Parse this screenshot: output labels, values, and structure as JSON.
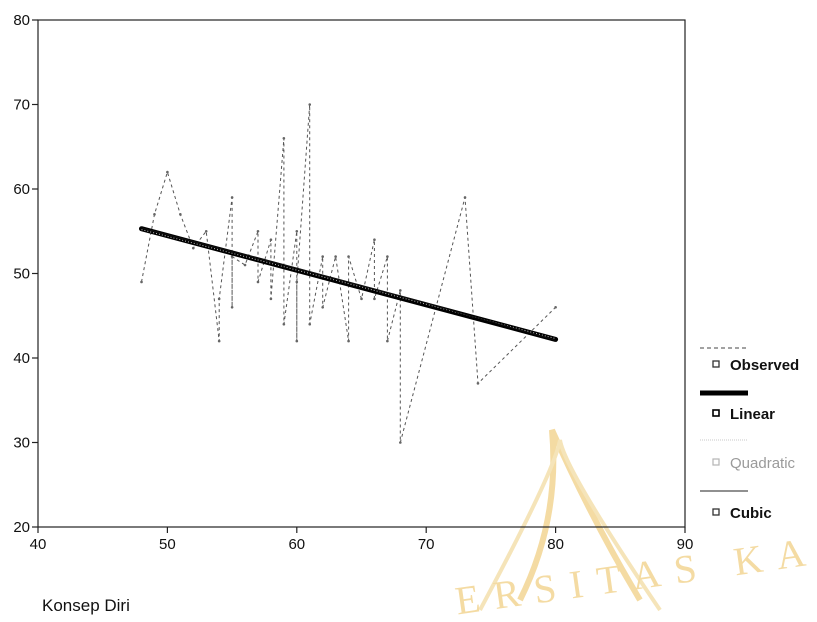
{
  "chart_data": {
    "type": "line",
    "xlabel": "Konsep Diri",
    "ylabel": "",
    "title": "",
    "xlim": [
      40,
      90
    ],
    "ylim": [
      20,
      80
    ],
    "xticks": [
      40,
      50,
      60,
      70,
      80,
      90
    ],
    "yticks": [
      20,
      30,
      40,
      50,
      60,
      70,
      80
    ],
    "grid": false,
    "legend_position": "right",
    "legend": [
      "Observed",
      "Linear",
      "Quadratic",
      "Cubic"
    ],
    "series": [
      {
        "name": "Observed",
        "style": "dashed",
        "x": [
          48,
          49,
          50,
          51,
          52,
          53,
          54,
          54,
          55,
          55,
          55,
          56,
          57,
          57,
          58,
          58,
          59,
          59,
          60,
          60,
          60,
          61,
          61,
          62,
          62,
          63,
          64,
          64,
          65,
          66,
          66,
          67,
          67,
          68,
          68,
          73,
          74,
          80
        ],
        "y": [
          49,
          57,
          62,
          57,
          53,
          55,
          42,
          47,
          59,
          46,
          52,
          51,
          55,
          49,
          54,
          47,
          66,
          44,
          55,
          42,
          49,
          70,
          44,
          52,
          46,
          52,
          42,
          52,
          47,
          54,
          47,
          52,
          42,
          48,
          30,
          59,
          37,
          46
        ]
      },
      {
        "name": "Linear",
        "style": "solid-thick",
        "x": [
          48,
          80
        ],
        "y": [
          55.3,
          42.2
        ]
      },
      {
        "name": "Quadratic",
        "style": "faint",
        "x": [
          48,
          64,
          80
        ],
        "y": [
          55.2,
          48.8,
          42.3
        ]
      },
      {
        "name": "Cubic",
        "style": "thin",
        "x": [
          48,
          60,
          70,
          80
        ],
        "y": [
          55.4,
          50.6,
          46.5,
          42.1
        ]
      }
    ]
  },
  "watermark": {
    "text": "ERSITAS KA"
  }
}
